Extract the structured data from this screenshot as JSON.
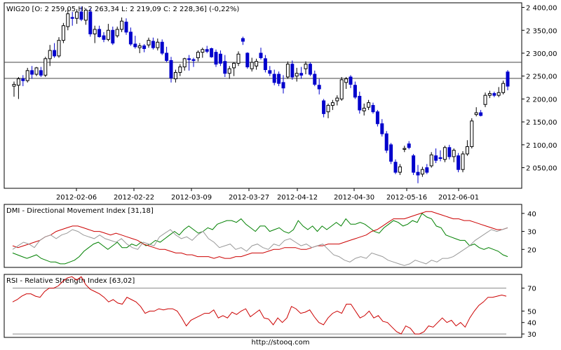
{
  "footer": "http://stooq.com",
  "chart_data": [
    {
      "type": "candlestick",
      "title": "WIG20 [O: 2 259,05  H: 2 263,34  L: 2 219,09  C: 2 228,36] (-0,22%)",
      "xticks": [
        "2012-02-06",
        "2012-02-22",
        "2012-03-09",
        "2012-03-27",
        "2012-04-12",
        "2012-04-30",
        "2012-05-16",
        "2012-06-01"
      ],
      "yticks": [
        "2 400,00",
        "2 350,00",
        "2 300,00",
        "2 250,00",
        "2 200,00",
        "2 150,00",
        "2 100,00",
        "2 050,00"
      ],
      "ylim": [
        2005,
        2410
      ],
      "hlines": [
        2280,
        2245
      ],
      "up_color": "#ffffff",
      "down_color": "#0000cc",
      "candles": [
        {
          "o": 2228,
          "h": 2238,
          "l": 2205,
          "c": 2232
        },
        {
          "o": 2230,
          "h": 2248,
          "l": 2200,
          "c": 2244
        },
        {
          "o": 2244,
          "h": 2252,
          "l": 2228,
          "c": 2240
        },
        {
          "o": 2240,
          "h": 2268,
          "l": 2236,
          "c": 2262
        },
        {
          "o": 2262,
          "h": 2272,
          "l": 2244,
          "c": 2254
        },
        {
          "o": 2254,
          "h": 2270,
          "l": 2250,
          "c": 2268
        },
        {
          "o": 2262,
          "h": 2270,
          "l": 2248,
          "c": 2252
        },
        {
          "o": 2252,
          "h": 2292,
          "l": 2248,
          "c": 2288
        },
        {
          "o": 2288,
          "h": 2318,
          "l": 2272,
          "c": 2306
        },
        {
          "o": 2306,
          "h": 2322,
          "l": 2290,
          "c": 2294
        },
        {
          "o": 2294,
          "h": 2335,
          "l": 2290,
          "c": 2328
        },
        {
          "o": 2328,
          "h": 2366,
          "l": 2322,
          "c": 2360
        },
        {
          "o": 2358,
          "h": 2398,
          "l": 2350,
          "c": 2386
        },
        {
          "o": 2378,
          "h": 2390,
          "l": 2360,
          "c": 2376
        },
        {
          "o": 2376,
          "h": 2396,
          "l": 2364,
          "c": 2390
        },
        {
          "o": 2390,
          "h": 2402,
          "l": 2370,
          "c": 2374
        },
        {
          "o": 2372,
          "h": 2398,
          "l": 2362,
          "c": 2394
        },
        {
          "o": 2390,
          "h": 2398,
          "l": 2336,
          "c": 2342
        },
        {
          "o": 2342,
          "h": 2360,
          "l": 2322,
          "c": 2352
        },
        {
          "o": 2352,
          "h": 2360,
          "l": 2334,
          "c": 2336
        },
        {
          "o": 2338,
          "h": 2346,
          "l": 2324,
          "c": 2330
        },
        {
          "o": 2330,
          "h": 2364,
          "l": 2326,
          "c": 2350
        },
        {
          "o": 2350,
          "h": 2358,
          "l": 2318,
          "c": 2322
        },
        {
          "o": 2338,
          "h": 2358,
          "l": 2334,
          "c": 2352
        },
        {
          "o": 2352,
          "h": 2378,
          "l": 2346,
          "c": 2370
        },
        {
          "o": 2368,
          "h": 2376,
          "l": 2340,
          "c": 2346
        },
        {
          "o": 2346,
          "h": 2356,
          "l": 2316,
          "c": 2320
        },
        {
          "o": 2320,
          "h": 2338,
          "l": 2310,
          "c": 2314
        },
        {
          "o": 2312,
          "h": 2322,
          "l": 2300,
          "c": 2316
        },
        {
          "o": 2316,
          "h": 2320,
          "l": 2302,
          "c": 2310
        },
        {
          "o": 2318,
          "h": 2334,
          "l": 2312,
          "c": 2328
        },
        {
          "o": 2326,
          "h": 2334,
          "l": 2308,
          "c": 2312
        },
        {
          "o": 2312,
          "h": 2332,
          "l": 2306,
          "c": 2324
        },
        {
          "o": 2324,
          "h": 2330,
          "l": 2296,
          "c": 2300
        },
        {
          "o": 2300,
          "h": 2314,
          "l": 2280,
          "c": 2284
        },
        {
          "o": 2284,
          "h": 2292,
          "l": 2236,
          "c": 2246
        },
        {
          "o": 2244,
          "h": 2264,
          "l": 2236,
          "c": 2258
        },
        {
          "o": 2258,
          "h": 2276,
          "l": 2250,
          "c": 2270
        },
        {
          "o": 2270,
          "h": 2290,
          "l": 2262,
          "c": 2288
        },
        {
          "o": 2288,
          "h": 2296,
          "l": 2262,
          "c": 2286
        },
        {
          "o": 2286,
          "h": 2290,
          "l": 2270,
          "c": 2284
        },
        {
          "o": 2290,
          "h": 2306,
          "l": 2282,
          "c": 2302
        },
        {
          "o": 2302,
          "h": 2312,
          "l": 2290,
          "c": 2308
        },
        {
          "o": 2308,
          "h": 2316,
          "l": 2300,
          "c": 2304
        },
        {
          "o": 2310,
          "h": 2312,
          "l": 2290,
          "c": 2292
        },
        {
          "o": 2302,
          "h": 2308,
          "l": 2270,
          "c": 2276
        },
        {
          "o": 2298,
          "h": 2306,
          "l": 2272,
          "c": 2278
        },
        {
          "o": 2282,
          "h": 2296,
          "l": 2248,
          "c": 2256
        },
        {
          "o": 2256,
          "h": 2272,
          "l": 2244,
          "c": 2266
        },
        {
          "o": 2268,
          "h": 2280,
          "l": 2250,
          "c": 2278
        },
        {
          "o": 2278,
          "h": 2304,
          "l": 2272,
          "c": 2298
        },
        {
          "o": 2332,
          "h": 2336,
          "l": 2318,
          "c": 2326
        },
        {
          "o": 2300,
          "h": 2302,
          "l": 2266,
          "c": 2270
        },
        {
          "o": 2266,
          "h": 2290,
          "l": 2260,
          "c": 2280
        },
        {
          "o": 2272,
          "h": 2288,
          "l": 2264,
          "c": 2282
        },
        {
          "o": 2300,
          "h": 2312,
          "l": 2286,
          "c": 2290
        },
        {
          "o": 2288,
          "h": 2296,
          "l": 2258,
          "c": 2264
        },
        {
          "o": 2262,
          "h": 2272,
          "l": 2250,
          "c": 2256
        },
        {
          "o": 2254,
          "h": 2264,
          "l": 2230,
          "c": 2236
        },
        {
          "o": 2254,
          "h": 2260,
          "l": 2228,
          "c": 2234
        },
        {
          "o": 2236,
          "h": 2252,
          "l": 2212,
          "c": 2224
        },
        {
          "o": 2248,
          "h": 2282,
          "l": 2244,
          "c": 2276
        },
        {
          "o": 2276,
          "h": 2284,
          "l": 2242,
          "c": 2248
        },
        {
          "o": 2250,
          "h": 2268,
          "l": 2238,
          "c": 2256
        },
        {
          "o": 2256,
          "h": 2270,
          "l": 2244,
          "c": 2252
        },
        {
          "o": 2266,
          "h": 2282,
          "l": 2254,
          "c": 2276
        },
        {
          "o": 2276,
          "h": 2280,
          "l": 2250,
          "c": 2254
        },
        {
          "o": 2254,
          "h": 2262,
          "l": 2228,
          "c": 2232
        },
        {
          "o": 2230,
          "h": 2244,
          "l": 2210,
          "c": 2222
        },
        {
          "o": 2196,
          "h": 2200,
          "l": 2160,
          "c": 2168
        },
        {
          "o": 2172,
          "h": 2190,
          "l": 2158,
          "c": 2186
        },
        {
          "o": 2186,
          "h": 2198,
          "l": 2176,
          "c": 2192
        },
        {
          "o": 2196,
          "h": 2208,
          "l": 2186,
          "c": 2202
        },
        {
          "o": 2200,
          "h": 2248,
          "l": 2196,
          "c": 2242
        },
        {
          "o": 2236,
          "h": 2248,
          "l": 2222,
          "c": 2244
        },
        {
          "o": 2248,
          "h": 2252,
          "l": 2224,
          "c": 2232
        },
        {
          "o": 2230,
          "h": 2238,
          "l": 2200,
          "c": 2204
        },
        {
          "o": 2206,
          "h": 2216,
          "l": 2168,
          "c": 2176
        },
        {
          "o": 2174,
          "h": 2190,
          "l": 2164,
          "c": 2180
        },
        {
          "o": 2182,
          "h": 2198,
          "l": 2176,
          "c": 2192
        },
        {
          "o": 2186,
          "h": 2192,
          "l": 2168,
          "c": 2172
        },
        {
          "o": 2172,
          "h": 2176,
          "l": 2140,
          "c": 2146
        },
        {
          "o": 2146,
          "h": 2156,
          "l": 2118,
          "c": 2124
        },
        {
          "o": 2124,
          "h": 2130,
          "l": 2082,
          "c": 2088
        },
        {
          "o": 2100,
          "h": 2104,
          "l": 2058,
          "c": 2064
        },
        {
          "o": 2062,
          "h": 2068,
          "l": 2036,
          "c": 2040
        },
        {
          "o": 2040,
          "h": 2058,
          "l": 2034,
          "c": 2052
        },
        {
          "o": 2090,
          "h": 2098,
          "l": 2084,
          "c": 2092
        },
        {
          "o": 2102,
          "h": 2108,
          "l": 2090,
          "c": 2094
        },
        {
          "o": 2076,
          "h": 2080,
          "l": 2034,
          "c": 2040
        },
        {
          "o": 2040,
          "h": 2056,
          "l": 2016,
          "c": 2034
        },
        {
          "o": 2036,
          "h": 2052,
          "l": 2030,
          "c": 2046
        },
        {
          "o": 2050,
          "h": 2058,
          "l": 2036,
          "c": 2040
        },
        {
          "o": 2054,
          "h": 2084,
          "l": 2050,
          "c": 2078
        },
        {
          "o": 2076,
          "h": 2092,
          "l": 2060,
          "c": 2066
        },
        {
          "o": 2072,
          "h": 2088,
          "l": 2064,
          "c": 2070
        },
        {
          "o": 2068,
          "h": 2098,
          "l": 2062,
          "c": 2094
        },
        {
          "o": 2094,
          "h": 2100,
          "l": 2068,
          "c": 2074
        },
        {
          "o": 2074,
          "h": 2092,
          "l": 2062,
          "c": 2088
        },
        {
          "o": 2076,
          "h": 2082,
          "l": 2040,
          "c": 2046
        },
        {
          "o": 2046,
          "h": 2086,
          "l": 2040,
          "c": 2080
        },
        {
          "o": 2080,
          "h": 2110,
          "l": 2076,
          "c": 2096
        },
        {
          "o": 2096,
          "h": 2158,
          "l": 2092,
          "c": 2152
        },
        {
          "o": 2166,
          "h": 2182,
          "l": 2162,
          "c": 2170
        },
        {
          "o": 2170,
          "h": 2176,
          "l": 2162,
          "c": 2164
        },
        {
          "o": 2188,
          "h": 2214,
          "l": 2182,
          "c": 2208
        },
        {
          "o": 2208,
          "h": 2218,
          "l": 2202,
          "c": 2212
        },
        {
          "o": 2212,
          "h": 2216,
          "l": 2204,
          "c": 2208
        },
        {
          "o": 2208,
          "h": 2226,
          "l": 2204,
          "c": 2214
        },
        {
          "o": 2214,
          "h": 2240,
          "l": 2210,
          "c": 2234
        },
        {
          "o": 2259,
          "h": 2263,
          "l": 2219,
          "c": 2228
        }
      ]
    },
    {
      "type": "line",
      "title": "DMI - Directional Movement Index [31,18]",
      "yticks": [
        "40",
        "30",
        "20"
      ],
      "ylim": [
        10,
        45
      ],
      "series": [
        {
          "color": "#008000",
          "values": [
            18,
            17,
            16,
            15,
            16,
            17,
            15,
            14,
            13,
            13,
            12,
            12,
            13,
            14,
            16,
            19,
            21,
            23,
            24,
            22,
            20,
            22,
            24,
            21,
            21,
            23,
            22,
            24,
            22,
            23,
            25,
            24,
            26,
            28,
            30,
            28,
            31,
            33,
            31,
            29,
            30,
            32,
            31,
            34,
            35,
            36,
            36,
            35,
            37,
            34,
            32,
            30,
            33,
            33,
            30,
            31,
            32,
            30,
            29,
            31,
            36,
            33,
            31,
            33,
            30,
            33,
            31,
            33,
            35,
            33,
            37,
            34,
            34,
            35,
            34,
            32,
            30,
            29,
            32,
            34,
            36,
            35,
            33,
            34,
            36,
            35,
            40,
            38,
            37,
            33,
            32,
            28,
            27,
            26,
            25,
            25,
            22,
            23,
            21,
            20,
            21,
            20,
            19,
            17,
            16
          ]
        },
        {
          "color": "#cc0000",
          "values": [
            22,
            21,
            22,
            23,
            24,
            25,
            27,
            28,
            30,
            31,
            32,
            33,
            33,
            32,
            31,
            30,
            30,
            29,
            28,
            29,
            28,
            27,
            26,
            25,
            23,
            22,
            21,
            20,
            20,
            19,
            18,
            18,
            17,
            17,
            16,
            16,
            16,
            15,
            16,
            15,
            15,
            16,
            16,
            17,
            18,
            18,
            18,
            19,
            20,
            20,
            21,
            21,
            21,
            20,
            20,
            21,
            22,
            22,
            23,
            23,
            23,
            24,
            25,
            26,
            27,
            28,
            30,
            31,
            33,
            35,
            37,
            37,
            37,
            38,
            39,
            40,
            41,
            41,
            40,
            39,
            38,
            37,
            37,
            36,
            36,
            35,
            34,
            33,
            32,
            31,
            31,
            32
          ]
        },
        {
          "color": "#999999",
          "values": [
            20,
            22,
            24,
            23,
            21,
            25,
            27,
            28,
            26,
            28,
            29,
            31,
            30,
            28,
            27,
            26,
            28,
            26,
            25,
            24,
            26,
            23,
            21,
            20,
            24,
            23,
            22,
            27,
            29,
            31,
            28,
            26,
            27,
            25,
            28,
            30,
            26,
            24,
            21,
            22,
            23,
            20,
            21,
            19,
            22,
            23,
            21,
            20,
            23,
            22,
            25,
            26,
            24,
            22,
            23,
            21,
            22,
            23,
            20,
            17,
            16,
            14,
            13,
            15,
            16,
            15,
            18,
            17,
            16,
            14,
            13,
            12,
            11,
            12,
            14,
            13,
            12,
            14,
            13,
            15,
            15,
            16,
            18,
            20,
            22,
            25,
            27,
            29,
            31,
            30,
            31,
            32
          ]
        }
      ]
    },
    {
      "type": "line",
      "title": "RSI - Relative Strength Index [63,02]",
      "yticks": [
        "70",
        "50",
        "40",
        "30"
      ],
      "ylim": [
        27,
        82
      ],
      "hlines": [
        70,
        30
      ],
      "series": [
        {
          "color": "#cc0000",
          "values": [
            58,
            60,
            63,
            65,
            65,
            63,
            62,
            67,
            70,
            70,
            72,
            76,
            79,
            80,
            77,
            80,
            73,
            69,
            67,
            65,
            62,
            58,
            60,
            57,
            56,
            62,
            60,
            58,
            54,
            48,
            50,
            50,
            52,
            51,
            52,
            52,
            50,
            44,
            37,
            42,
            44,
            46,
            48,
            48,
            51,
            44,
            46,
            44,
            49,
            47,
            50,
            52,
            45,
            48,
            51,
            44,
            43,
            38,
            44,
            40,
            44,
            54,
            52,
            48,
            49,
            51,
            45,
            40,
            38,
            44,
            48,
            50,
            48,
            56,
            56,
            50,
            44,
            46,
            50,
            44,
            46,
            41,
            40,
            36,
            32,
            30,
            37,
            35,
            30,
            30,
            32,
            37,
            36,
            40,
            44,
            40,
            42,
            37,
            40,
            36,
            44,
            50,
            55,
            58,
            62,
            62,
            63,
            64,
            63
          ]
        }
      ]
    }
  ]
}
